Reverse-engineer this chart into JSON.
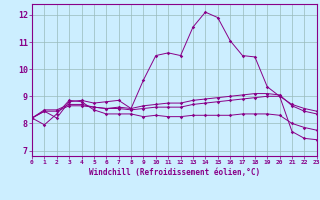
{
  "xlabel": "Windchill (Refroidissement éolien,°C)",
  "bg_color": "#cceeff",
  "line_color": "#880088",
  "grid_color": "#99bbbb",
  "x_ticks": [
    0,
    1,
    2,
    3,
    4,
    5,
    6,
    7,
    8,
    9,
    10,
    11,
    12,
    13,
    14,
    15,
    16,
    17,
    18,
    19,
    20,
    21,
    22,
    23
  ],
  "xlim": [
    0,
    23
  ],
  "ylim": [
    6.8,
    12.4
  ],
  "y_ticks": [
    7,
    8,
    9,
    10,
    11,
    12
  ],
  "series": [
    [
      8.2,
      8.45,
      8.2,
      8.8,
      8.85,
      8.75,
      8.8,
      8.85,
      8.55,
      9.6,
      10.5,
      10.6,
      10.5,
      11.55,
      12.1,
      11.9,
      11.05,
      10.5,
      10.45,
      9.35,
      9.0,
      7.7,
      7.45,
      7.4
    ],
    [
      8.2,
      7.95,
      8.35,
      8.85,
      8.8,
      8.5,
      8.35,
      8.35,
      8.35,
      8.25,
      8.3,
      8.25,
      8.25,
      8.3,
      8.3,
      8.3,
      8.3,
      8.35,
      8.35,
      8.35,
      8.3,
      8.0,
      7.85,
      7.75
    ],
    [
      8.2,
      8.5,
      8.5,
      8.7,
      8.7,
      8.6,
      8.55,
      8.55,
      8.5,
      8.55,
      8.6,
      8.6,
      8.6,
      8.7,
      8.75,
      8.8,
      8.85,
      8.9,
      8.95,
      9.0,
      9.0,
      8.7,
      8.55,
      8.45
    ],
    [
      8.2,
      8.45,
      8.45,
      8.65,
      8.65,
      8.6,
      8.55,
      8.6,
      8.55,
      8.65,
      8.7,
      8.75,
      8.75,
      8.85,
      8.9,
      8.95,
      9.0,
      9.05,
      9.1,
      9.1,
      9.05,
      8.65,
      8.45,
      8.35
    ]
  ]
}
